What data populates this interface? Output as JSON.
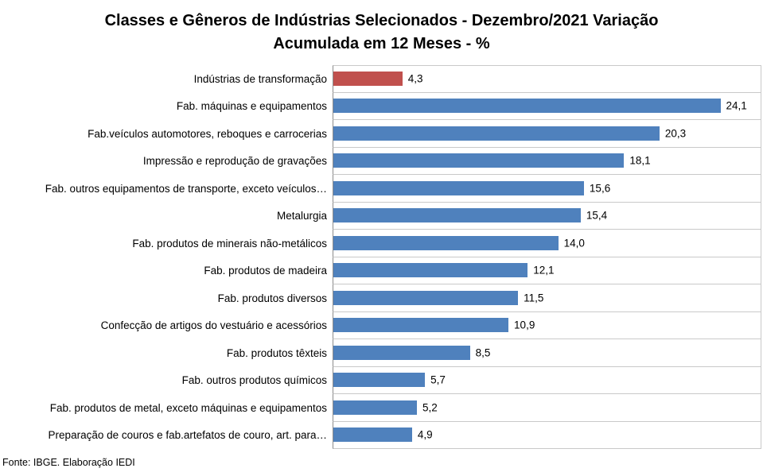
{
  "chart_data": {
    "type": "bar",
    "orientation": "horizontal",
    "title": "Classes e Gêneros de Indústrias Selecionados - Dezembro/2021 Variação Acumulada em 12 Meses - %",
    "title_lines": [
      "Classes e Gêneros de Indústrias Selecionados - Dezembro/2021 Variação",
      "Acumulada em 12 Meses - %"
    ],
    "categories": [
      "Indústrias de transformação",
      "Fab. máquinas e equipamentos",
      "Fab.veículos automotores, reboques e carrocerias",
      "Impressão e reprodução de gravações",
      "Fab. outros equipamentos de transporte, exceto veículos…",
      "Metalurgia",
      "Fab. produtos de minerais não-metálicos",
      "Fab. produtos de madeira",
      "Fab. produtos diversos",
      "Confecção de artigos do vestuário e acessórios",
      "Fab. produtos têxteis",
      "Fab. outros produtos químicos",
      "Fab. produtos de metal, exceto máquinas e equipamentos",
      "Preparação de couros e fab.artefatos de couro, art. para…"
    ],
    "values": [
      4.3,
      24.1,
      20.3,
      18.1,
      15.6,
      15.4,
      14.0,
      12.1,
      11.5,
      10.9,
      8.5,
      5.7,
      5.2,
      4.9
    ],
    "value_labels": [
      "4,3",
      "24,1",
      "20,3",
      "18,1",
      "15,6",
      "15,4",
      "14,0",
      "12,1",
      "11,5",
      "10,9",
      "8,5",
      "5,7",
      "5,2",
      "4,9"
    ],
    "xlim": [
      0,
      26.6
    ],
    "highlight_index": 0,
    "colors": {
      "bar": "#4F81BD",
      "highlight": "#C0504D",
      "gridline": "#C9C9C9",
      "axis": "#8C8C8C",
      "text": "#000000"
    },
    "legend": "none",
    "grid": "category-separators",
    "value_label_position": "outside-end"
  },
  "footer": {
    "source": "Fonte: IBGE. Elaboração IEDI"
  }
}
